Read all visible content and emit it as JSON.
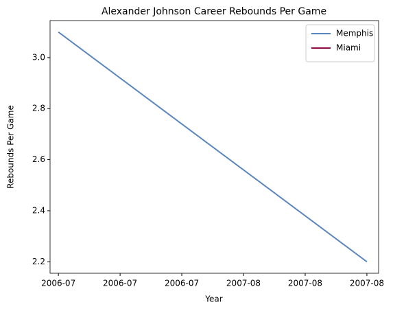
{
  "chart_data": {
    "type": "line",
    "title": "Alexander Johnson Career Rebounds Per Game",
    "xlabel": "Year",
    "ylabel": "Rebounds Per Game",
    "x": [
      0,
      1
    ],
    "series": [
      {
        "name": "Memphis",
        "color": "#5b86bb",
        "values": [
          3.1,
          2.2
        ]
      },
      {
        "name": "Miami",
        "color": "#8b0a45",
        "values": [
          null,
          null
        ]
      }
    ],
    "xlim": [
      -0.027,
      1.038
    ],
    "xticks": [
      {
        "value": 0,
        "label": "2006-07"
      },
      {
        "value": 0.2,
        "label": "2006-07"
      },
      {
        "value": 0.4,
        "label": "2006-07"
      },
      {
        "value": 0.6,
        "label": "2007-08"
      },
      {
        "value": 0.8,
        "label": "2007-08"
      },
      {
        "value": 1,
        "label": "2007-08"
      }
    ],
    "ylim": [
      2.155,
      3.145
    ],
    "yticks": [
      {
        "value": 2.2,
        "label": "2.2"
      },
      {
        "value": 2.4,
        "label": "2.4"
      },
      {
        "value": 2.6,
        "label": "2.6"
      },
      {
        "value": 2.8,
        "label": "2.8"
      },
      {
        "value": 3.0,
        "label": "3.0"
      }
    ],
    "legend": "upper right"
  }
}
